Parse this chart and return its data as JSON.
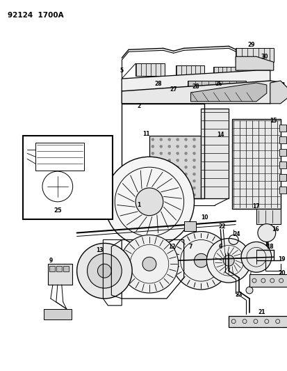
{
  "title": "92124  1700A",
  "bg_color": "#ffffff",
  "fig_width": 4.14,
  "fig_height": 5.33,
  "dpi": 100
}
